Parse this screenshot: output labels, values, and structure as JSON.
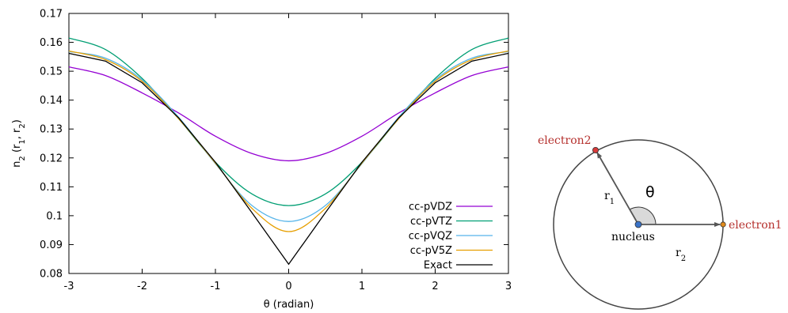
{
  "chart_data": {
    "type": "line",
    "xlabel": "θ (radian)",
    "ylabel": {
      "base": "n",
      "sub_main": "2",
      "args": [
        " (r",
        ", r",
        ")"
      ],
      "sub_r1": "1",
      "sub_r2": "2"
    },
    "xlim": [
      -3,
      3
    ],
    "ylim": [
      0.08,
      0.17
    ],
    "xticks": [
      -3,
      -2,
      -1,
      0,
      1,
      2,
      3
    ],
    "xtick_labels": [
      "-3",
      "-2",
      "-1",
      "0",
      "1",
      "2",
      "3"
    ],
    "yticks": [
      0.08,
      0.09,
      0.1,
      0.11,
      0.12,
      0.13,
      0.14,
      0.15,
      0.16,
      0.17
    ],
    "ytick_labels": [
      "0.08",
      "0.09",
      "0.1",
      "0.11",
      "0.12",
      "0.13",
      "0.14",
      "0.15",
      "0.16",
      "0.17"
    ],
    "grid": false,
    "legend_position": "bottom-right",
    "series": [
      {
        "name": "cc-pVDZ",
        "color": "#9400d3",
        "x": [
          0,
          0.5,
          1.0,
          1.5,
          2.0,
          2.5,
          3.0
        ],
        "y": [
          0.119,
          0.1215,
          0.1275,
          0.1355,
          0.1425,
          0.1485,
          0.1515
        ]
      },
      {
        "name": "cc-pVTZ",
        "color": "#009e73",
        "x": [
          0,
          0.5,
          1.0,
          1.5,
          2.0,
          2.5,
          3.0
        ],
        "y": [
          0.1035,
          0.1075,
          0.1185,
          0.1335,
          0.1475,
          0.1575,
          0.1615
        ]
      },
      {
        "name": "cc-pVQZ",
        "color": "#56b4e9",
        "x": [
          0,
          0.5,
          1.0,
          1.5,
          2.0,
          2.5,
          3.0
        ],
        "y": [
          0.098,
          0.1035,
          0.118,
          0.134,
          0.147,
          0.1545,
          0.1568
        ]
      },
      {
        "name": "cc-pV5Z",
        "color": "#e69f00",
        "x": [
          0,
          0.5,
          1.0,
          1.5,
          2.0,
          2.5,
          3.0
        ],
        "y": [
          0.0945,
          0.1025,
          0.1182,
          0.1335,
          0.1465,
          0.154,
          0.157
        ]
      },
      {
        "name": "Exact",
        "color": "#000000",
        "x": [
          0,
          0.5,
          1.0,
          1.5,
          2.0,
          2.5,
          3.0
        ],
        "y": [
          0.0832,
          0.101,
          0.1185,
          0.1338,
          0.146,
          0.1535,
          0.1562
        ]
      }
    ]
  },
  "diagram": {
    "electron1": {
      "label": "electron1",
      "color": "#e08a1c"
    },
    "electron2": {
      "label": "electron2",
      "color": "#d83a3a"
    },
    "nucleus": {
      "label": "nucleus",
      "color": "#3a73c8"
    },
    "r1": {
      "base": "r",
      "sub": "1"
    },
    "r2": {
      "base": "r",
      "sub": "2"
    },
    "angle_label": "θ",
    "label_color": "#b5302d"
  }
}
